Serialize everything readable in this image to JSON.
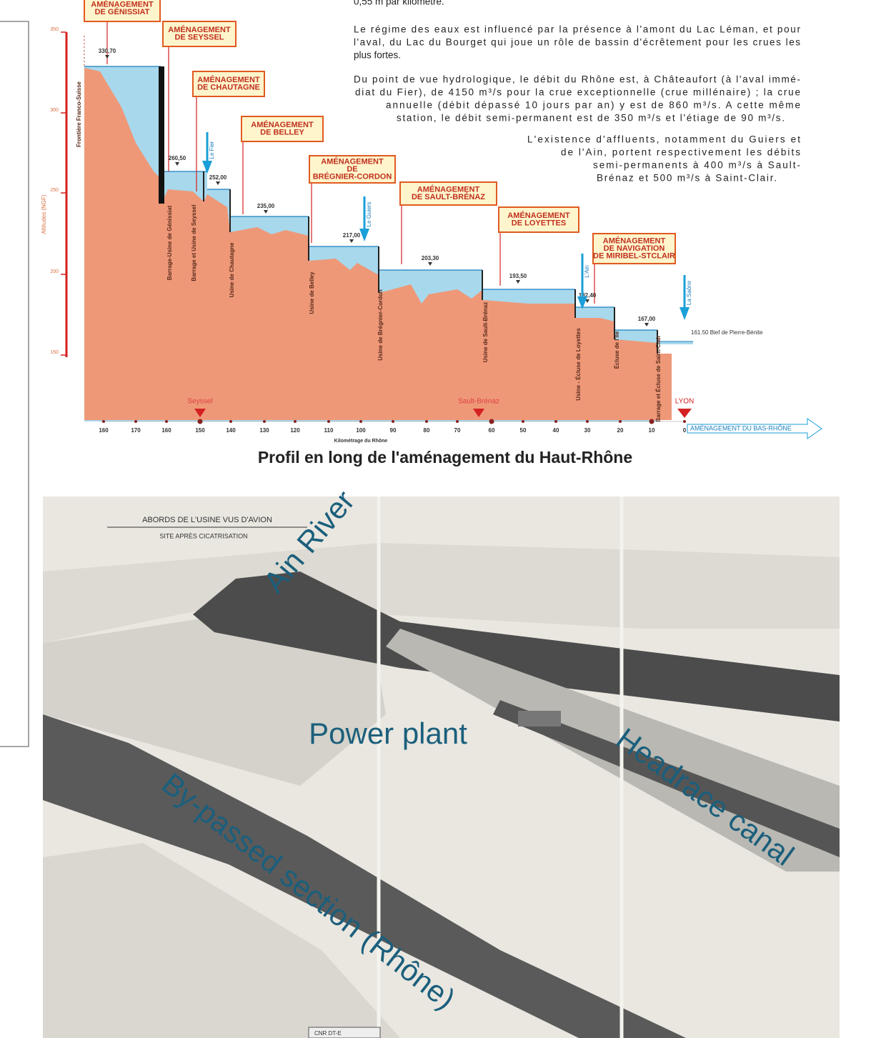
{
  "text": {
    "fragment": "0,55 m par kilomètre.",
    "paragraphs": [
      [
        "Le régime des eaux est influencé par la présence à l'amont du Lac Léman, et pour",
        "l'aval, du Lac du Bourget qui joue un rôle de bassin d'écrêtement pour les crues les",
        "plus fortes."
      ],
      [
        "Du point de vue hydrologique, le débit du Rhône est, à Châteaufort (à l'aval immé-",
        "diat du Fier), de 4150 m³/s pour la crue exceptionnelle (crue millénaire) ; la crue",
        "annuelle (débit dépassé 10 jours par an) y est de 860 m³/s. A cette même",
        "station, le débit semi-permanent est de 350 m³/s et l'étiage de 90 m³/s."
      ],
      [
        "L'existence d'affluents, notamment du Guiers et",
        "de l'Ain, portent respectivement les débits",
        "semi-permanents à 400 m³/s à Sault-",
        "Brénaz et 500 m³/s à Saint-Clair."
      ]
    ]
  },
  "profile": {
    "boxes": [
      [
        "AMÉNAGEMENT",
        "DE GÉNISSIAT"
      ],
      [
        "AMÉNAGEMENT",
        "DE SEYSSEL"
      ],
      [
        "AMÉNAGEMENT",
        "DE CHAUTAGNE"
      ],
      [
        "AMÉNAGEMENT",
        "DE BELLEY"
      ],
      [
        "AMÉNAGEMENT",
        "DE",
        "BRÉGNIER-CORDON"
      ],
      [
        "AMÉNAGEMENT",
        "DE SAULT-BRÉNAZ"
      ],
      [
        "AMÉNAGEMENT",
        "DE LOYETTES"
      ],
      [
        "AMÉNAGEMENT",
        "DE NAVIGATION",
        "DE MIRIBEL-STCLAIR"
      ]
    ],
    "y_label": "Altitudes (NGF)",
    "y_ticks": [
      350,
      300,
      250,
      200,
      150
    ],
    "frontier": "Frontière Franco-Suisse",
    "elevations": [
      "330,70",
      "260,50",
      "252,00",
      "235,00",
      "217,00",
      "203,30",
      "193,50",
      "182,40",
      "167,00"
    ],
    "dams": [
      "Barrage-Usine de Génissiat",
      "Barrage et Usine de Seyssel",
      "Usine de Chautagne",
      "Usine de Belley",
      "Usine de Brégnier-Cordon",
      "Usine de Sault-Brénaz",
      "Usine - Écluse de Loyettes",
      "Écluse de l'Ile",
      "Barrage et Écluse de Saint-Clair"
    ],
    "tributaries": [
      "Le Fier",
      "Le Guiers",
      "L'Ain",
      "La Saône"
    ],
    "pierre_benite": "161.50 Bief de Pierre-Bénite",
    "km_ticks": [
      160,
      170,
      160,
      150,
      140,
      130,
      120,
      110,
      100,
      90,
      80,
      70,
      60,
      50,
      40,
      30,
      20,
      10,
      0
    ],
    "km_label": "Kilométrage du Rhône",
    "places": [
      "Seyssel",
      "Sault-Brénaz",
      "LYON"
    ],
    "downstream": "AMÉNAGEMENT DU BAS-RHÔNE"
  },
  "profile_title": "Profil en long de l'aménagement du Haut-Rhône",
  "photo": {
    "caption": "ABORDS DE L'USINE VUS D'AVION",
    "subcaption": "SITE APRÈS CICATRISATION",
    "stamp": "CNR DT-E",
    "annotations": [
      "Ain River",
      "Power plant",
      "Headrace canal",
      "By-passed section (Rhône)"
    ]
  }
}
